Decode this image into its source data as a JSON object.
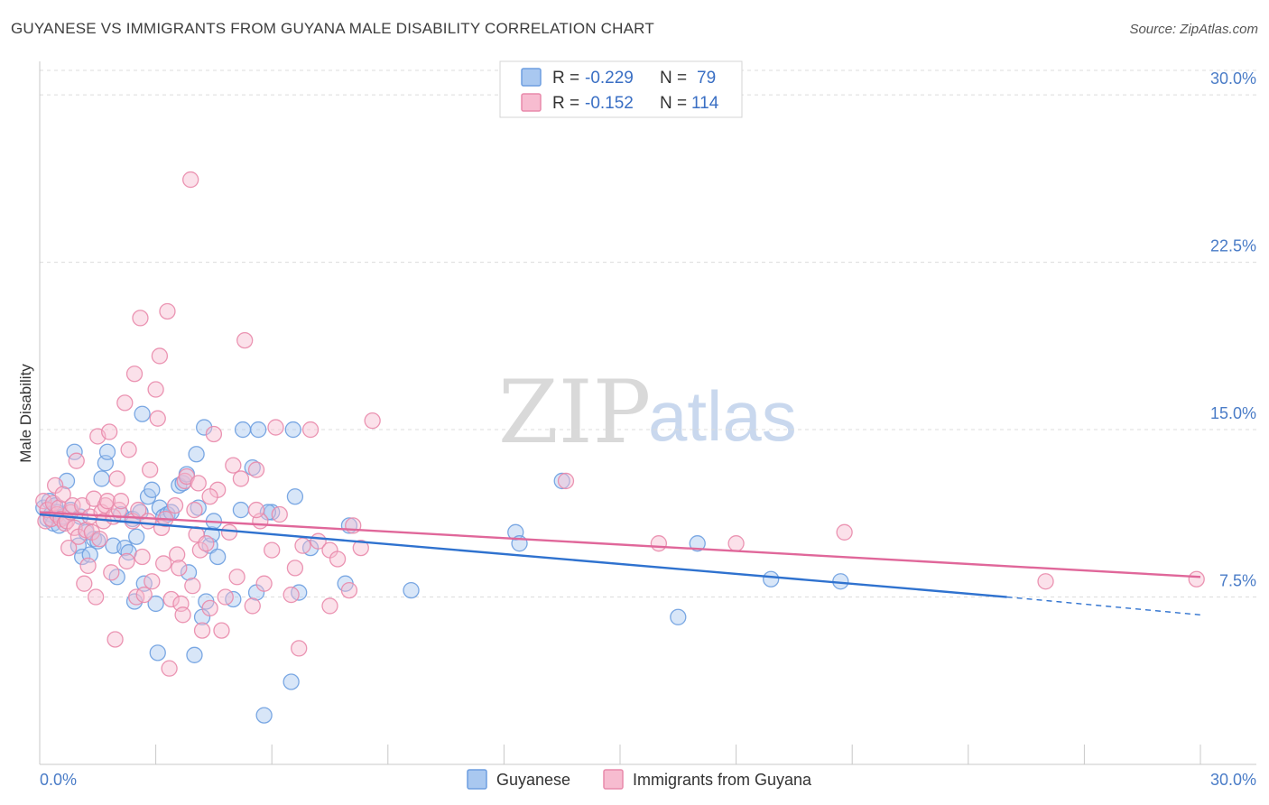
{
  "title": "GUYANESE VS IMMIGRANTS FROM GUYANA MALE DISABILITY CORRELATION CHART",
  "source": "Source: ZipAtlas.com",
  "watermark": {
    "part1": "ZIP",
    "part2": "atlas"
  },
  "colors": {
    "blue_fill": "#a9c8f0",
    "blue_stroke": "#6d9ee0",
    "blue_line": "#2f72cf",
    "pink_fill": "#f7bcd0",
    "pink_stroke": "#e98aab",
    "pink_line": "#e0679a",
    "tick": "#4a7cc7",
    "grid": "#dcdcdc"
  },
  "legend": {
    "rows": [
      {
        "r_label": "R =",
        "r_value": "-0.229",
        "n_label": "N =",
        "n_value": "79"
      },
      {
        "r_label": "R =",
        "r_value": "-0.152",
        "n_label": "N =",
        "n_value": "114"
      }
    ]
  },
  "chart_data": {
    "type": "scatter",
    "title": "GUYANESE VS IMMIGRANTS FROM GUYANA MALE DISABILITY CORRELATION CHART",
    "xlabel": "",
    "ylabel": "Male Disability",
    "xlim": [
      0,
      30
    ],
    "ylim": [
      0,
      31.5
    ],
    "x_tick_labels": [
      "0.0%",
      "30.0%"
    ],
    "y_ticks": [
      {
        "value": 7.5,
        "label": "7.5%"
      },
      {
        "value": 15,
        "label": "15.0%"
      },
      {
        "value": 22.5,
        "label": "22.5%"
      },
      {
        "value": 30,
        "label": "30.0%"
      }
    ],
    "grid": true,
    "legend_position": "top-center",
    "series": [
      {
        "name": "Guyanese",
        "r": -0.229,
        "n": 79,
        "trend": {
          "x0": 0,
          "y0": 11.2,
          "x1": 25,
          "y1": 7.5,
          "dashed_to_x": 30,
          "dashed_to_y": 6.7
        },
        "points": [
          [
            0.1,
            11.5
          ],
          [
            0.2,
            11.0
          ],
          [
            0.25,
            11.8
          ],
          [
            0.3,
            11.2
          ],
          [
            0.35,
            10.8
          ],
          [
            0.4,
            11.6
          ],
          [
            0.45,
            11.3
          ],
          [
            0.5,
            10.7
          ],
          [
            0.6,
            11.1
          ],
          [
            0.7,
            12.7
          ],
          [
            0.8,
            11.4
          ],
          [
            0.9,
            14.0
          ],
          [
            1.0,
            9.8
          ],
          [
            1.05,
            11.1
          ],
          [
            1.1,
            9.3
          ],
          [
            1.2,
            10.4
          ],
          [
            1.3,
            9.4
          ],
          [
            1.4,
            10.1
          ],
          [
            1.5,
            10.0
          ],
          [
            1.6,
            12.8
          ],
          [
            1.7,
            13.5
          ],
          [
            1.75,
            14.0
          ],
          [
            1.9,
            9.8
          ],
          [
            2.0,
            8.4
          ],
          [
            2.1,
            11.2
          ],
          [
            2.2,
            9.7
          ],
          [
            2.3,
            9.5
          ],
          [
            2.4,
            11.0
          ],
          [
            2.45,
            7.3
          ],
          [
            2.5,
            10.2
          ],
          [
            2.6,
            11.3
          ],
          [
            2.65,
            15.7
          ],
          [
            2.7,
            8.1
          ],
          [
            2.8,
            12.0
          ],
          [
            2.9,
            12.3
          ],
          [
            3.0,
            7.2
          ],
          [
            3.05,
            5.0
          ],
          [
            3.1,
            11.5
          ],
          [
            3.2,
            11.1
          ],
          [
            3.3,
            11.2
          ],
          [
            3.4,
            11.3
          ],
          [
            3.6,
            12.5
          ],
          [
            3.7,
            12.6
          ],
          [
            3.8,
            13.0
          ],
          [
            3.85,
            8.6
          ],
          [
            4.0,
            4.9
          ],
          [
            4.05,
            13.9
          ],
          [
            4.1,
            11.5
          ],
          [
            4.2,
            6.6
          ],
          [
            4.25,
            15.1
          ],
          [
            4.3,
            7.3
          ],
          [
            4.4,
            9.8
          ],
          [
            4.45,
            10.3
          ],
          [
            4.5,
            10.9
          ],
          [
            4.6,
            9.3
          ],
          [
            5.0,
            7.4
          ],
          [
            5.2,
            11.4
          ],
          [
            5.25,
            15.0
          ],
          [
            5.5,
            13.3
          ],
          [
            5.6,
            7.7
          ],
          [
            5.65,
            15.0
          ],
          [
            5.8,
            2.2
          ],
          [
            6.0,
            11.3
          ],
          [
            6.5,
            3.7
          ],
          [
            6.6,
            12.0
          ],
          [
            6.55,
            15.0
          ],
          [
            6.7,
            7.7
          ],
          [
            7.0,
            9.7
          ],
          [
            7.9,
            8.1
          ],
          [
            8.0,
            10.7
          ],
          [
            9.6,
            7.8
          ],
          [
            12.3,
            10.4
          ],
          [
            12.4,
            9.9
          ],
          [
            13.5,
            12.7
          ],
          [
            16.5,
            6.6
          ],
          [
            17.0,
            9.9
          ],
          [
            18.9,
            8.3
          ],
          [
            20.7,
            8.2
          ],
          [
            5.9,
            11.3
          ]
        ]
      },
      {
        "name": "Immigrants from Guyana",
        "r": -0.152,
        "n": 114,
        "trend": {
          "x0": 0,
          "y0": 11.3,
          "x1": 30,
          "y1": 8.4
        },
        "points": [
          [
            0.1,
            11.8
          ],
          [
            0.15,
            10.9
          ],
          [
            0.2,
            11.4
          ],
          [
            0.3,
            11.0
          ],
          [
            0.35,
            11.7
          ],
          [
            0.4,
            12.5
          ],
          [
            0.45,
            11.2
          ],
          [
            0.5,
            11.5
          ],
          [
            0.55,
            11.0
          ],
          [
            0.6,
            12.1
          ],
          [
            0.65,
            10.8
          ],
          [
            0.7,
            10.9
          ],
          [
            0.75,
            9.7
          ],
          [
            0.8,
            11.3
          ],
          [
            0.85,
            11.6
          ],
          [
            0.9,
            10.6
          ],
          [
            0.95,
            13.6
          ],
          [
            1.0,
            10.2
          ],
          [
            1.1,
            11.6
          ],
          [
            1.15,
            8.1
          ],
          [
            1.2,
            10.5
          ],
          [
            1.25,
            8.9
          ],
          [
            1.3,
            11.1
          ],
          [
            1.35,
            10.4
          ],
          [
            1.4,
            11.9
          ],
          [
            1.45,
            7.5
          ],
          [
            1.5,
            14.7
          ],
          [
            1.55,
            10.1
          ],
          [
            1.6,
            11.3
          ],
          [
            1.65,
            10.9
          ],
          [
            1.7,
            11.6
          ],
          [
            1.75,
            11.8
          ],
          [
            1.8,
            14.9
          ],
          [
            1.85,
            8.6
          ],
          [
            1.9,
            11.1
          ],
          [
            1.95,
            5.6
          ],
          [
            2.0,
            12.8
          ],
          [
            2.05,
            11.4
          ],
          [
            2.1,
            11.8
          ],
          [
            2.2,
            16.2
          ],
          [
            2.25,
            9.1
          ],
          [
            2.3,
            14.1
          ],
          [
            2.4,
            10.9
          ],
          [
            2.45,
            17.5
          ],
          [
            2.5,
            7.5
          ],
          [
            2.55,
            11.4
          ],
          [
            2.6,
            20.0
          ],
          [
            2.65,
            9.3
          ],
          [
            2.7,
            7.6
          ],
          [
            2.8,
            10.9
          ],
          [
            2.85,
            13.2
          ],
          [
            2.9,
            8.2
          ],
          [
            3.0,
            16.8
          ],
          [
            3.05,
            15.5
          ],
          [
            3.1,
            18.3
          ],
          [
            3.15,
            10.6
          ],
          [
            3.2,
            9.0
          ],
          [
            3.25,
            11.0
          ],
          [
            3.3,
            20.3
          ],
          [
            3.35,
            4.3
          ],
          [
            3.4,
            7.4
          ],
          [
            3.5,
            11.6
          ],
          [
            3.55,
            9.4
          ],
          [
            3.6,
            8.8
          ],
          [
            3.65,
            7.2
          ],
          [
            3.7,
            6.7
          ],
          [
            3.75,
            12.7
          ],
          [
            3.8,
            12.9
          ],
          [
            3.9,
            26.2
          ],
          [
            3.95,
            8.0
          ],
          [
            4.0,
            11.4
          ],
          [
            4.05,
            10.3
          ],
          [
            4.1,
            12.6
          ],
          [
            4.15,
            9.6
          ],
          [
            4.2,
            6.0
          ],
          [
            4.3,
            9.9
          ],
          [
            4.4,
            7.0
          ],
          [
            4.5,
            14.8
          ],
          [
            4.6,
            12.3
          ],
          [
            4.7,
            6.0
          ],
          [
            4.8,
            7.5
          ],
          [
            4.9,
            10.4
          ],
          [
            5.0,
            13.4
          ],
          [
            5.1,
            8.4
          ],
          [
            5.2,
            12.8
          ],
          [
            5.3,
            19.0
          ],
          [
            5.5,
            7.1
          ],
          [
            5.6,
            13.2
          ],
          [
            5.7,
            10.9
          ],
          [
            5.8,
            8.1
          ],
          [
            6.0,
            9.6
          ],
          [
            6.1,
            15.1
          ],
          [
            6.2,
            11.2
          ],
          [
            6.5,
            7.6
          ],
          [
            6.6,
            8.8
          ],
          [
            6.7,
            5.2
          ],
          [
            6.8,
            9.8
          ],
          [
            7.0,
            15.0
          ],
          [
            7.2,
            10.0
          ],
          [
            7.5,
            9.6
          ],
          [
            7.7,
            9.2
          ],
          [
            8.0,
            7.8
          ],
          [
            8.1,
            10.7
          ],
          [
            8.3,
            9.7
          ],
          [
            8.6,
            15.4
          ],
          [
            13.6,
            12.7
          ],
          [
            16.0,
            9.9
          ],
          [
            18.0,
            9.9
          ],
          [
            20.8,
            10.4
          ],
          [
            26.0,
            8.2
          ],
          [
            29.9,
            8.3
          ],
          [
            7.5,
            7.1
          ],
          [
            5.6,
            11.4
          ],
          [
            4.4,
            12.0
          ]
        ]
      }
    ]
  },
  "bottom_legend": [
    {
      "label": "Guyanese"
    },
    {
      "label": "Immigrants from Guyana"
    }
  ]
}
